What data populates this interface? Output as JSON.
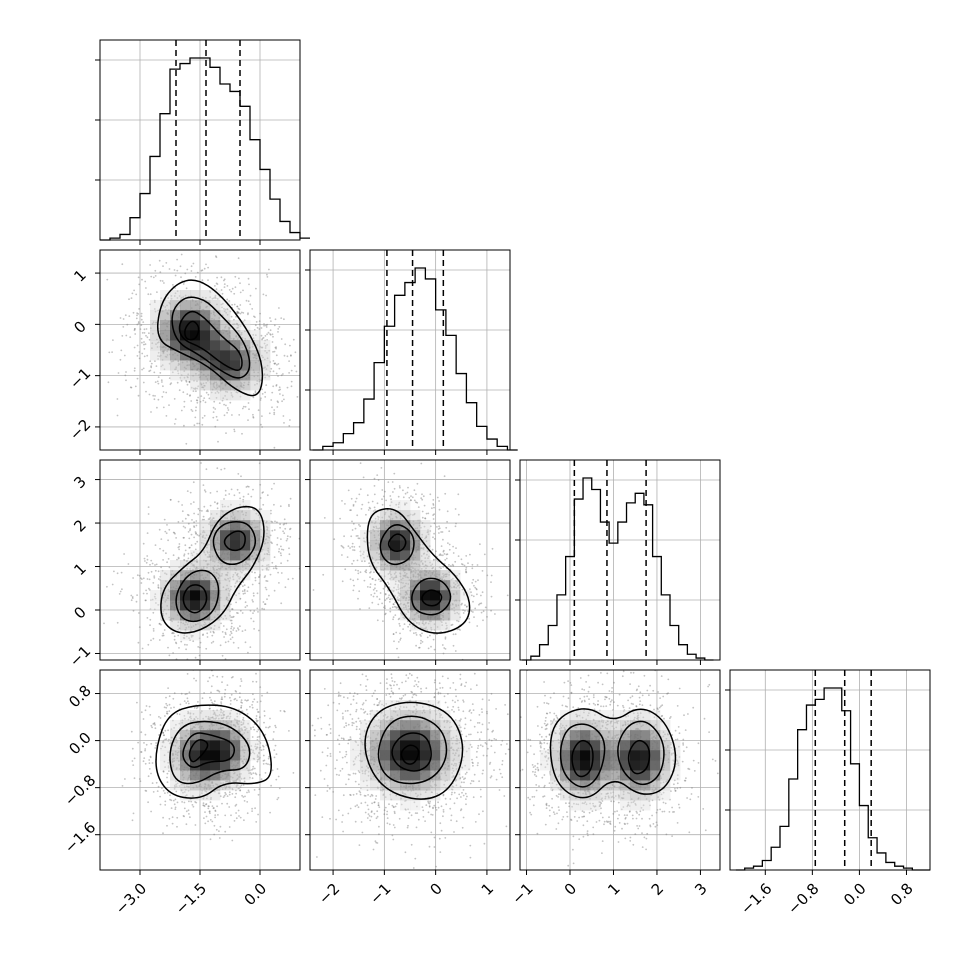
{
  "chart_data": {
    "type": "corner",
    "variables": 4,
    "grid": true,
    "quantile_lines": "dashed",
    "variable_ranges": [
      [
        -4.0,
        1.0
      ],
      [
        -2.45,
        1.45
      ],
      [
        -1.15,
        3.45
      ],
      [
        -2.2,
        1.2
      ]
    ],
    "diagonal_ticks": [
      [
        -3.0,
        -1.5,
        0.0
      ],
      [
        -2,
        -1,
        0,
        1
      ],
      [
        -1,
        0,
        1,
        2,
        3
      ],
      [
        -1.6,
        -0.8,
        0.0,
        0.8
      ]
    ],
    "row_ticks": {
      "1": [
        -2,
        -1,
        0,
        1
      ],
      "2": [
        -1,
        0,
        1,
        2,
        3
      ],
      "3": [
        -1.6,
        -0.8,
        0.0,
        0.8
      ]
    },
    "x_tick_labels": [
      [
        "−3.0",
        "−1.5",
        "0.0"
      ],
      [
        "−2",
        "−1",
        "0",
        "1"
      ],
      [
        "−1",
        "0",
        "1",
        "2",
        "3"
      ],
      [
        "−1.6",
        "−0.8",
        "0.0",
        "0.8"
      ]
    ],
    "y_tick_labels": {
      "1": [
        "−2",
        "−1",
        "0",
        "1"
      ],
      "2": [
        "−1",
        "0",
        "1",
        "2",
        "3"
      ],
      "3": [
        "−1.6",
        "−0.8",
        "0.0",
        "0.8"
      ]
    },
    "quantiles": [
      [
        -2.1,
        -1.35,
        -0.5
      ],
      [
        -0.95,
        -0.45,
        0.15
      ],
      [
        0.1,
        0.85,
        1.75
      ],
      [
        -0.75,
        -0.25,
        0.2
      ]
    ],
    "histograms": [
      {
        "edges_min": -4.0,
        "bin_width": 0.25,
        "counts": [
          0,
          1,
          3,
          12,
          25,
          45,
          68,
          92,
          95,
          98,
          98,
          93,
          84,
          80,
          72,
          54,
          38,
          22,
          10,
          4,
          1
        ]
      },
      {
        "edges_min": -2.4,
        "bin_width": 0.2,
        "counts": [
          0,
          2,
          4,
          9,
          15,
          28,
          48,
          68,
          85,
          92,
          100,
          94,
          77,
          63,
          42,
          26,
          13,
          6,
          2,
          0
        ]
      },
      {
        "edges_min": -1.1,
        "bin_width": 0.2,
        "counts": [
          0,
          2,
          8,
          18,
          34,
          54,
          84,
          95,
          89,
          72,
          61,
          72,
          82,
          87,
          81,
          54,
          34,
          18,
          8,
          3,
          1,
          0
        ]
      },
      {
        "edges_min": -2.1,
        "bin_width": 0.15,
        "counts": [
          0,
          1,
          2,
          5,
          12,
          23,
          48,
          74,
          87,
          90,
          96,
          96,
          84,
          56,
          34,
          17,
          9,
          4,
          2,
          1,
          0,
          0
        ]
      }
    ],
    "pairs": [
      {
        "row": 1,
        "col": 0,
        "modes": [
          {
            "x": -1.75,
            "y": -0.15,
            "sx": 0.5,
            "sy": 0.4,
            "w": 1.0
          },
          {
            "x": -0.75,
            "y": -0.75,
            "sx": 0.5,
            "sy": 0.35,
            "w": 0.8
          }
        ],
        "contours": [
          [
            [
              -2.5,
              0.4
            ],
            [
              -2.1,
              0.8
            ],
            [
              -1.6,
              0.9
            ],
            [
              -1.0,
              0.6
            ],
            [
              -0.3,
              -0.1
            ],
            [
              0.1,
              -0.8
            ],
            [
              0.0,
              -1.45
            ],
            [
              -0.6,
              -1.3
            ],
            [
              -1.3,
              -0.8
            ],
            [
              -2.0,
              -0.55
            ],
            [
              -2.6,
              -0.3
            ]
          ],
          [
            [
              -2.25,
              0.2
            ],
            [
              -1.9,
              0.55
            ],
            [
              -1.4,
              0.5
            ],
            [
              -1.0,
              0.2
            ],
            [
              -0.4,
              -0.3
            ],
            [
              -0.2,
              -0.85
            ],
            [
              -0.5,
              -1.1
            ],
            [
              -1.0,
              -0.9
            ],
            [
              -1.5,
              -0.6
            ],
            [
              -2.1,
              -0.35
            ]
          ],
          [
            [
              -2.05,
              0.0
            ],
            [
              -1.75,
              0.3
            ],
            [
              -1.4,
              0.15
            ],
            [
              -0.95,
              -0.25
            ],
            [
              -0.45,
              -0.55
            ],
            [
              -0.45,
              -0.95
            ],
            [
              -0.9,
              -0.8
            ],
            [
              -1.45,
              -0.45
            ],
            [
              -1.95,
              -0.3
            ]
          ],
          [
            [
              -1.9,
              -0.1
            ],
            [
              -1.7,
              0.1
            ],
            [
              -1.5,
              -0.05
            ],
            [
              -1.6,
              -0.3
            ],
            [
              -1.85,
              -0.3
            ]
          ]
        ]
      },
      {
        "row": 2,
        "col": 0,
        "modes": [
          {
            "x": -1.65,
            "y": 0.3,
            "sx": 0.45,
            "sy": 0.4,
            "w": 1.0
          },
          {
            "x": -0.6,
            "y": 1.6,
            "sx": 0.45,
            "sy": 0.4,
            "w": 0.85
          }
        ],
        "contours": [
          [
            [
              -2.45,
              0.5
            ],
            [
              -2.5,
              -0.2
            ],
            [
              -2.1,
              -0.55
            ],
            [
              -1.5,
              -0.5
            ],
            [
              -0.9,
              -0.1
            ],
            [
              -0.6,
              0.5
            ],
            [
              -0.15,
              1.0
            ],
            [
              0.15,
              1.7
            ],
            [
              0.0,
              2.35
            ],
            [
              -0.55,
              2.4
            ],
            [
              -1.1,
              2.05
            ],
            [
              -1.4,
              1.35
            ],
            [
              -1.9,
              1.0
            ]
          ],
          [
            [
              -2.15,
              0.3
            ],
            [
              -2.0,
              -0.2
            ],
            [
              -1.55,
              -0.3
            ],
            [
              -1.1,
              0.0
            ],
            [
              -1.0,
              0.6
            ],
            [
              -1.3,
              0.95
            ],
            [
              -1.8,
              0.85
            ]
          ],
          [
            [
              -1.2,
              1.5
            ],
            [
              -0.95,
              1.05
            ],
            [
              -0.45,
              1.05
            ],
            [
              -0.05,
              1.5
            ],
            [
              -0.25,
              2.0
            ],
            [
              -0.75,
              2.05
            ],
            [
              -1.1,
              1.85
            ]
          ],
          [
            [
              -1.95,
              0.3
            ],
            [
              -1.85,
              0.0
            ],
            [
              -1.55,
              -0.1
            ],
            [
              -1.3,
              0.2
            ],
            [
              -1.4,
              0.55
            ],
            [
              -1.75,
              0.6
            ]
          ],
          [
            [
              -0.95,
              1.6
            ],
            [
              -0.75,
              1.35
            ],
            [
              -0.4,
              1.4
            ],
            [
              -0.35,
              1.75
            ],
            [
              -0.6,
              1.85
            ]
          ]
        ]
      },
      {
        "row": 2,
        "col": 1,
        "modes": [
          {
            "x": -0.75,
            "y": 1.55,
            "sx": 0.3,
            "sy": 0.4,
            "w": 0.9
          },
          {
            "x": -0.1,
            "y": 0.3,
            "sx": 0.3,
            "sy": 0.35,
            "w": 1.0
          }
        ],
        "contours": [
          [
            [
              -1.35,
              1.9
            ],
            [
              -1.2,
              2.3
            ],
            [
              -0.75,
              2.35
            ],
            [
              -0.4,
              1.8
            ],
            [
              -0.05,
              1.25
            ],
            [
              0.4,
              0.8
            ],
            [
              0.7,
              0.2
            ],
            [
              0.6,
              -0.35
            ],
            [
              0.0,
              -0.6
            ],
            [
              -0.55,
              -0.3
            ],
            [
              -0.9,
              0.5
            ],
            [
              -1.3,
              1.1
            ]
          ],
          [
            [
              -1.1,
              1.6
            ],
            [
              -0.8,
              2.05
            ],
            [
              -0.4,
              1.75
            ],
            [
              -0.45,
              1.2
            ],
            [
              -0.8,
              1.0
            ],
            [
              -1.05,
              1.2
            ]
          ],
          [
            [
              -0.5,
              0.35
            ],
            [
              -0.25,
              0.75
            ],
            [
              0.15,
              0.7
            ],
            [
              0.35,
              0.25
            ],
            [
              0.05,
              -0.15
            ],
            [
              -0.4,
              -0.05
            ]
          ],
          [
            [
              -0.95,
              1.55
            ],
            [
              -0.75,
              1.8
            ],
            [
              -0.55,
              1.6
            ],
            [
              -0.65,
              1.35
            ],
            [
              -0.85,
              1.35
            ]
          ],
          [
            [
              -0.3,
              0.3
            ],
            [
              -0.1,
              0.5
            ],
            [
              0.15,
              0.35
            ],
            [
              0.05,
              0.1
            ],
            [
              -0.2,
              0.1
            ]
          ]
        ]
      },
      {
        "row": 3,
        "col": 0,
        "modes": [
          {
            "x": -1.45,
            "y": -0.25,
            "sx": 0.45,
            "sy": 0.35,
            "w": 1.0
          },
          {
            "x": -0.8,
            "y": -0.15,
            "sx": 0.35,
            "sy": 0.3,
            "w": 0.6
          }
        ],
        "contours": [
          [
            [
              -2.6,
              -0.1
            ],
            [
              -2.3,
              0.45
            ],
            [
              -1.6,
              0.62
            ],
            [
              -0.6,
              0.58
            ],
            [
              0.15,
              0.15
            ],
            [
              0.35,
              -0.6
            ],
            [
              -0.1,
              -0.75
            ],
            [
              -0.9,
              -0.7
            ],
            [
              -1.45,
              -1.0
            ],
            [
              -2.2,
              -0.95
            ],
            [
              -2.6,
              -0.6
            ]
          ],
          [
            [
              -2.3,
              -0.2
            ],
            [
              -2.0,
              0.25
            ],
            [
              -1.4,
              0.35
            ],
            [
              -0.7,
              0.25
            ],
            [
              -0.2,
              -0.1
            ],
            [
              -0.35,
              -0.5
            ],
            [
              -1.0,
              -0.5
            ],
            [
              -1.6,
              -0.75
            ],
            [
              -2.15,
              -0.7
            ]
          ],
          [
            [
              -2.0,
              -0.25
            ],
            [
              -1.7,
              0.15
            ],
            [
              -1.2,
              0.1
            ],
            [
              -0.6,
              -0.05
            ],
            [
              -0.7,
              -0.35
            ],
            [
              -1.3,
              -0.35
            ],
            [
              -1.7,
              -0.5
            ]
          ],
          [
            [
              -1.8,
              -0.2
            ],
            [
              -1.55,
              0.05
            ],
            [
              -1.25,
              -0.05
            ],
            [
              -1.45,
              -0.25
            ],
            [
              -1.7,
              -0.4
            ]
          ]
        ]
      },
      {
        "row": 3,
        "col": 1,
        "modes": [
          {
            "x": -0.5,
            "y": -0.2,
            "sx": 0.5,
            "sy": 0.4,
            "w": 1.0
          }
        ],
        "contours": [
          [
            [
              -1.45,
              -0.1
            ],
            [
              -1.2,
              0.5
            ],
            [
              -0.5,
              0.7
            ],
            [
              0.3,
              0.5
            ],
            [
              0.6,
              -0.15
            ],
            [
              0.3,
              -0.85
            ],
            [
              -0.3,
              -1.05
            ],
            [
              -1.1,
              -0.8
            ]
          ],
          [
            [
              -1.15,
              -0.15
            ],
            [
              -0.9,
              0.35
            ],
            [
              -0.35,
              0.45
            ],
            [
              0.15,
              0.2
            ],
            [
              0.25,
              -0.3
            ],
            [
              -0.1,
              -0.7
            ],
            [
              -0.7,
              -0.75
            ],
            [
              -1.05,
              -0.55
            ]
          ],
          [
            [
              -0.9,
              -0.15
            ],
            [
              -0.6,
              0.15
            ],
            [
              -0.15,
              0.1
            ],
            [
              -0.05,
              -0.35
            ],
            [
              -0.35,
              -0.55
            ],
            [
              -0.75,
              -0.45
            ]
          ],
          [
            [
              -0.7,
              -0.2
            ],
            [
              -0.5,
              -0.05
            ],
            [
              -0.3,
              -0.15
            ],
            [
              -0.4,
              -0.4
            ],
            [
              -0.6,
              -0.4
            ]
          ]
        ]
      },
      {
        "row": 3,
        "col": 2,
        "modes": [
          {
            "x": 0.3,
            "y": -0.3,
            "sx": 0.4,
            "sy": 0.38,
            "w": 1.0
          },
          {
            "x": 1.6,
            "y": -0.3,
            "sx": 0.4,
            "sy": 0.38,
            "w": 0.95
          }
        ],
        "contours": [
          [
            [
              -0.5,
              -0.1
            ],
            [
              -0.3,
              0.4
            ],
            [
              0.4,
              0.6
            ],
            [
              1.0,
              0.3
            ],
            [
              1.6,
              0.6
            ],
            [
              2.2,
              0.35
            ],
            [
              2.5,
              -0.3
            ],
            [
              2.2,
              -0.85
            ],
            [
              1.6,
              -0.95
            ],
            [
              1.0,
              -0.6
            ],
            [
              0.4,
              -1.05
            ],
            [
              -0.3,
              -0.8
            ]
          ],
          [
            [
              -0.25,
              -0.15
            ],
            [
              -0.05,
              0.25
            ],
            [
              0.45,
              0.3
            ],
            [
              0.85,
              0.0
            ],
            [
              0.7,
              -0.6
            ],
            [
              0.3,
              -0.85
            ],
            [
              -0.15,
              -0.6
            ]
          ],
          [
            [
              1.05,
              -0.1
            ],
            [
              1.35,
              0.3
            ],
            [
              1.8,
              0.35
            ],
            [
              2.2,
              -0.05
            ],
            [
              2.1,
              -0.6
            ],
            [
              1.65,
              -0.8
            ],
            [
              1.2,
              -0.55
            ]
          ],
          [
            [
              0.0,
              -0.25
            ],
            [
              0.25,
              0.05
            ],
            [
              0.55,
              -0.1
            ],
            [
              0.5,
              -0.55
            ],
            [
              0.15,
              -0.65
            ]
          ],
          [
            [
              1.3,
              -0.25
            ],
            [
              1.55,
              0.05
            ],
            [
              1.85,
              -0.1
            ],
            [
              1.8,
              -0.5
            ],
            [
              1.45,
              -0.6
            ]
          ]
        ]
      }
    ]
  }
}
